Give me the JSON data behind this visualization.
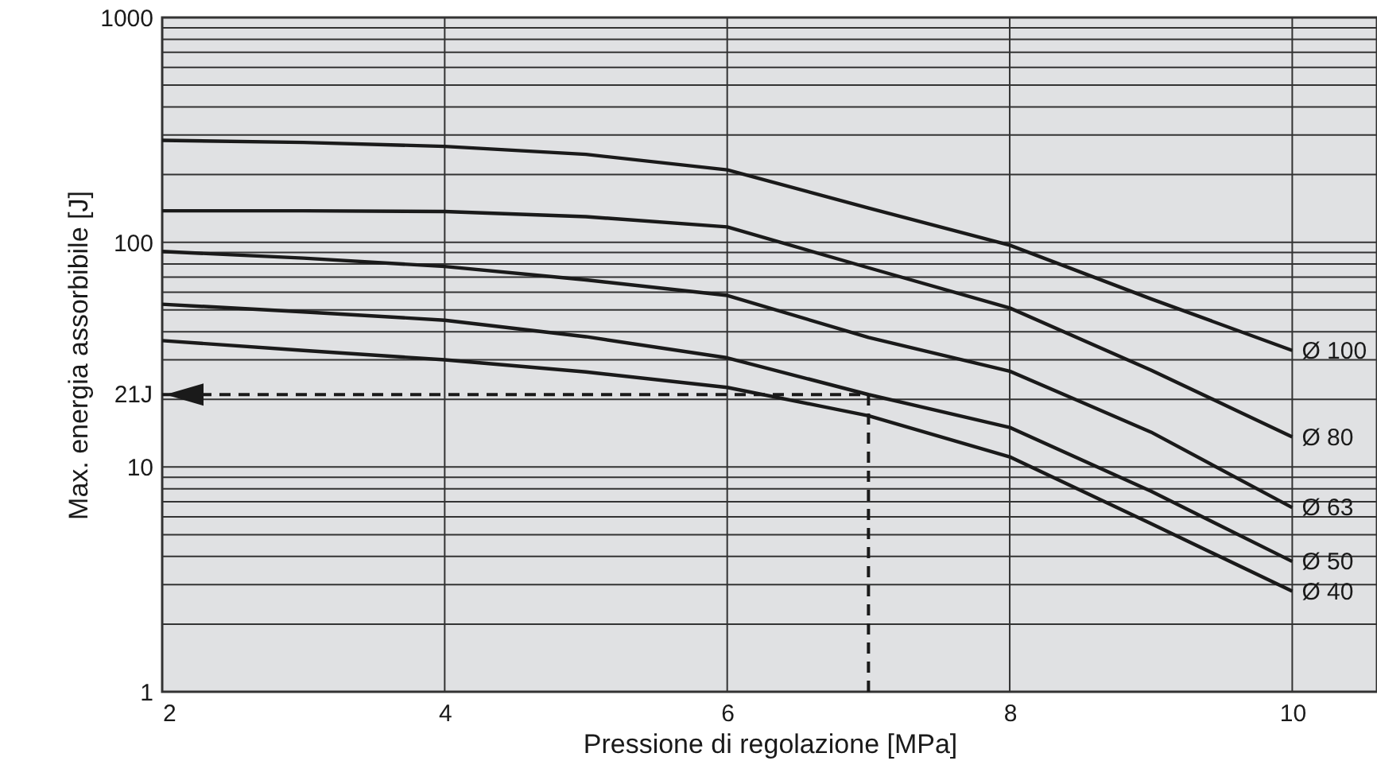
{
  "chart_data": {
    "type": "line",
    "xlabel": "Pressione di regolazione [MPa]",
    "ylabel": "Max. energia assorbibile [J]",
    "x": [
      2,
      3,
      4,
      5,
      6,
      7,
      8,
      9,
      10
    ],
    "series": [
      {
        "name": "Ø 100",
        "color": "#1a1a1a",
        "values": [
          284,
          278,
          267,
          246,
          210,
          142,
          97,
          56,
          33
        ]
      },
      {
        "name": "Ø 80",
        "color": "#1a1a1a",
        "values": [
          138,
          138,
          137,
          130,
          117,
          77,
          51,
          27,
          13.6
        ]
      },
      {
        "name": "Ø 63",
        "color": "#1a1a1a",
        "values": [
          91,
          85,
          78,
          68,
          58,
          37.7,
          26.7,
          14.3,
          6.6
        ]
      },
      {
        "name": "Ø 50",
        "color": "#1a1a1a",
        "values": [
          53,
          49,
          45,
          38,
          30.6,
          21,
          15,
          7.8,
          3.8
        ]
      },
      {
        "name": "Ø 40",
        "color": "#1a1a1a",
        "values": [
          36.5,
          33,
          30,
          26.5,
          22.6,
          16.9,
          11.1,
          5.6,
          2.8
        ]
      }
    ],
    "xlim": [
      2,
      10.6
    ],
    "xticks": [
      2,
      4,
      6,
      8,
      10
    ],
    "log": "y",
    "ylim": [
      1,
      1000
    ],
    "yticks": [
      1,
      {
        "value": 2,
        "label": null
      },
      {
        "value": 3,
        "label": null
      },
      {
        "value": 4,
        "label": null
      },
      {
        "value": 5,
        "label": null
      },
      {
        "value": 6,
        "label": null
      },
      {
        "value": 7,
        "label": null
      },
      {
        "value": 8,
        "label": null
      },
      {
        "value": 9,
        "label": null
      },
      10,
      {
        "value": 20,
        "label": null
      },
      {
        "value": 30,
        "label": null
      },
      {
        "value": 40,
        "label": null
      },
      {
        "value": 50,
        "label": null
      },
      {
        "value": 60,
        "label": null
      },
      {
        "value": 70,
        "label": null
      },
      {
        "value": 80,
        "label": null
      },
      {
        "value": 90,
        "label": null
      },
      100,
      {
        "value": 200,
        "label": null
      },
      {
        "value": 300,
        "label": null
      },
      {
        "value": 400,
        "label": null
      },
      {
        "value": 500,
        "label": null
      },
      {
        "value": 600,
        "label": null
      },
      {
        "value": 700,
        "label": null
      },
      {
        "value": 800,
        "label": null
      },
      {
        "value": 900,
        "label": null
      },
      1000
    ],
    "grid": true,
    "line_style": "solid",
    "marker": "none",
    "ref_lines": [
      {
        "axis": "y",
        "value": 21,
        "label": "21J",
        "line_style": "dashed",
        "color": "#1a1a1a"
      },
      {
        "axis": "x",
        "value": 7,
        "line_style": "dashed",
        "color": "#1a1a1a"
      }
    ]
  }
}
